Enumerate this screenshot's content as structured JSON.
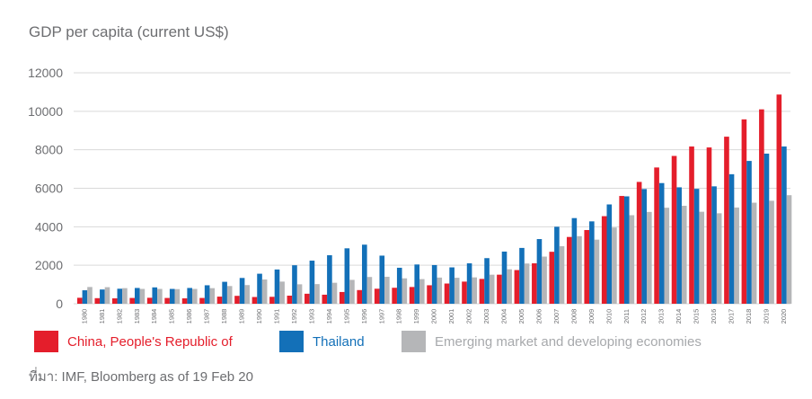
{
  "title": "GDP per capita (current US$)",
  "source": "ที่มา: IMF, Bloomberg as of 19 Feb 20",
  "colors": {
    "china": "#e41e2b",
    "thailand": "#1370b8",
    "emde": "#b5b6b8",
    "grid": "#d9d9d9",
    "axis_text": "#6d6e71"
  },
  "legend": [
    {
      "label": "China, People's Republic of",
      "color": "#e41e2b"
    },
    {
      "label": "Thailand",
      "color": "#1370b8"
    },
    {
      "label": "Emerging market and developing economies",
      "color": "#b5b6b8"
    }
  ],
  "chart_data": {
    "type": "bar",
    "title": "GDP per capita (current US$)",
    "ylim": [
      0,
      12000
    ],
    "yticks": [
      "0",
      "2000",
      "4000",
      "6000",
      "8000",
      "10000",
      "12000"
    ],
    "grid": true,
    "legend_position": "bottom",
    "categories": [
      "1980",
      "1981",
      "1982",
      "1983",
      "1984",
      "1985",
      "1986",
      "1987",
      "1988",
      "1989",
      "1990",
      "1991",
      "1992",
      "1993",
      "1994",
      "1995",
      "1996",
      "1997",
      "1998",
      "1999",
      "2000",
      "2001",
      "2002",
      "2003",
      "2004",
      "2005",
      "2006",
      "2007",
      "2008",
      "2009",
      "2010",
      "2011",
      "2012",
      "2013",
      "2014",
      "2015",
      "2016",
      "2017",
      "2018",
      "2019",
      "2020"
    ],
    "series": [
      {
        "name": "China, People's Republic of",
        "color": "#e41e2b",
        "values": [
          310,
          290,
          280,
          300,
          310,
          300,
          280,
          300,
          370,
          410,
          350,
          360,
          420,
          520,
          470,
          610,
          710,
          780,
          830,
          870,
          960,
          1050,
          1150,
          1290,
          1510,
          1750,
          2100,
          2700,
          3470,
          3830,
          4550,
          5600,
          6330,
          7080,
          7680,
          8170,
          8120,
          8680,
          9580,
          10100,
          10870
        ]
      },
      {
        "name": "Thailand",
        "color": "#1370b8",
        "values": [
          700,
          740,
          780,
          820,
          850,
          770,
          820,
          960,
          1140,
          1340,
          1560,
          1780,
          2000,
          2240,
          2520,
          2880,
          3070,
          2500,
          1870,
          2040,
          2010,
          1890,
          2100,
          2370,
          2710,
          2900,
          3360,
          4000,
          4450,
          4280,
          5160,
          5580,
          5960,
          6270,
          6050,
          5970,
          6100,
          6730,
          7420,
          7800,
          8170
        ]
      },
      {
        "name": "Emerging market and developing economies",
        "color": "#b5b6b8",
        "values": [
          870,
          860,
          810,
          770,
          770,
          760,
          770,
          810,
          920,
          970,
          1260,
          1150,
          1010,
          1020,
          1090,
          1240,
          1390,
          1400,
          1320,
          1280,
          1360,
          1350,
          1370,
          1510,
          1790,
          2090,
          2450,
          2990,
          3510,
          3330,
          3960,
          4600,
          4770,
          4990,
          5090,
          4780,
          4700,
          5000,
          5250,
          5350,
          5640
        ]
      }
    ]
  }
}
